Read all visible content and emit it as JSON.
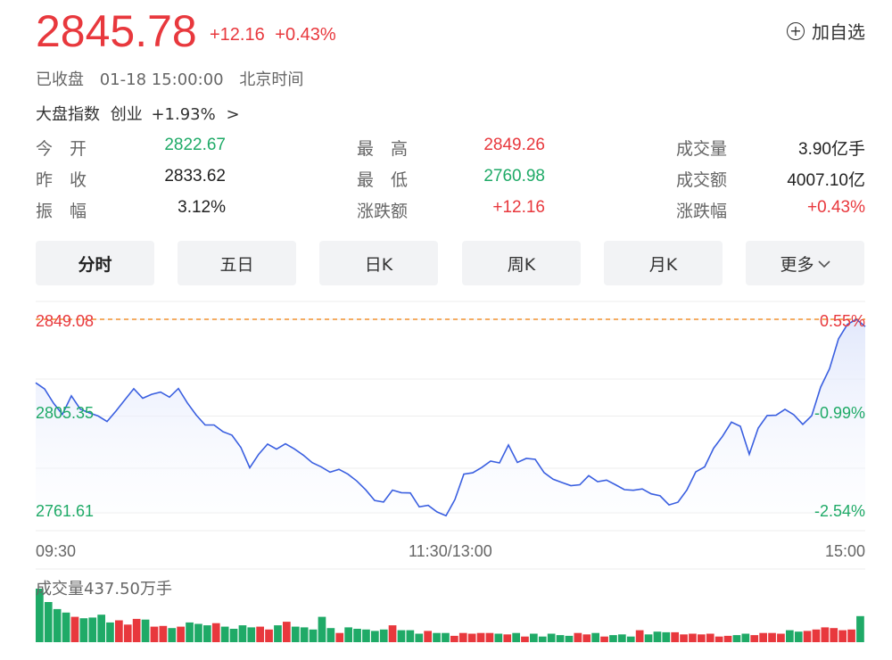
{
  "header": {
    "price": "2845.78",
    "change_abs": "+12.16",
    "change_pct": "+0.43%",
    "add_label": "加自选"
  },
  "status": {
    "state": "已收盘",
    "datetime": "01-18 15:00:00",
    "timezone": "北京时间"
  },
  "index": {
    "label": "大盘指数",
    "name": "创业",
    "change": "+1.93%",
    "arrow": ">"
  },
  "stats": [
    [
      {
        "label": "今　开",
        "value": "2822.67",
        "color": "down"
      },
      {
        "label": "最　高",
        "value": "2849.26",
        "color": "up"
      },
      {
        "label": "成交量",
        "value": "3.90亿手",
        "color": "neutral"
      }
    ],
    [
      {
        "label": "昨　收",
        "value": "2833.62",
        "color": "neutral"
      },
      {
        "label": "最　低",
        "value": "2760.98",
        "color": "down"
      },
      {
        "label": "成交额",
        "value": "4007.10亿",
        "color": "neutral"
      }
    ],
    [
      {
        "label": "振　幅",
        "value": "3.12%",
        "color": "neutral"
      },
      {
        "label": "涨跌额",
        "value": "+12.16",
        "color": "up"
      },
      {
        "label": "涨跌幅",
        "value": "+0.43%",
        "color": "up"
      }
    ]
  ],
  "tabs": [
    "分时",
    "五日",
    "日K",
    "周K",
    "月K",
    "更多"
  ],
  "active_tab": 0,
  "chart_data": {
    "type": "line",
    "y_left_labels": [
      "2849.08",
      "2805.35",
      "2761.61"
    ],
    "y_right_labels": [
      "0.55%",
      "-0.99%",
      "-2.54%"
    ],
    "x_labels": [
      "09:30",
      "11:30/13:00",
      "15:00"
    ],
    "ylim": [
      2761.61,
      2849.08
    ],
    "reference": 2833.62,
    "volume_label": "成交量437.50万手",
    "colors": {
      "line": "#3a5fe0",
      "up": "#e8383d",
      "down": "#1faa67",
      "ref_line": "#f0902e"
    },
    "price": [
      2820.4,
      2817.6,
      2811.2,
      2806.1,
      2814.5,
      2808.5,
      2806.8,
      2805.4,
      2802.9,
      2807.6,
      2812.7,
      2817.7,
      2813.4,
      2815.2,
      2816.2,
      2813.9,
      2817.8,
      2811.3,
      2805.8,
      2801.3,
      2801.3,
      2798.3,
      2796.7,
      2791.2,
      2782.0,
      2788.1,
      2792.7,
      2790.4,
      2792.8,
      2790.5,
      2787.7,
      2784.3,
      2782.4,
      2780.0,
      2781.3,
      2779.1,
      2776.0,
      2772.0,
      2767.2,
      2766.5,
      2771.9,
      2770.7,
      2770.6,
      2764.3,
      2765.0,
      2762.0,
      2760.3,
      2767.6,
      2779.1,
      2779.7,
      2782.1,
      2785.0,
      2784.2,
      2792.3,
      2784.4,
      2786.2,
      2785.8,
      2779.8,
      2776.8,
      2775.3,
      2773.9,
      2774.3,
      2778.4,
      2775.7,
      2776.4,
      2774.3,
      2772.1,
      2771.8,
      2772.4,
      2770.2,
      2769.3,
      2765.2,
      2766.4,
      2771.9,
      2780.1,
      2782.4,
      2790.8,
      2796.2,
      2802.6,
      2800.7,
      2788.1,
      2799.9,
      2805.6,
      2805.7,
      2808.4,
      2805.9,
      2801.6,
      2805.5,
      2818.4,
      2826.8,
      2840.2,
      2846.8,
      2849.1,
      2845.8
    ],
    "volume": [
      76,
      57,
      47,
      42,
      36,
      34,
      35,
      39,
      28,
      31,
      25,
      33,
      32,
      22,
      23,
      20,
      22,
      28,
      26,
      24,
      27,
      22,
      19,
      24,
      21,
      22,
      18,
      24,
      29,
      22,
      21,
      18,
      36,
      20,
      13,
      21,
      19,
      18,
      16,
      18,
      24,
      17,
      17,
      12,
      16,
      13,
      13,
      9,
      13,
      12,
      13,
      13,
      12,
      11,
      13,
      8,
      12,
      8,
      12,
      10,
      9,
      13,
      11,
      13,
      8,
      10,
      11,
      8,
      17,
      11,
      15,
      14,
      14,
      11,
      12,
      11,
      12,
      8,
      9,
      10,
      12,
      10,
      13,
      13,
      12,
      17,
      15,
      16,
      18,
      21,
      20,
      17,
      18,
      37
    ]
  }
}
